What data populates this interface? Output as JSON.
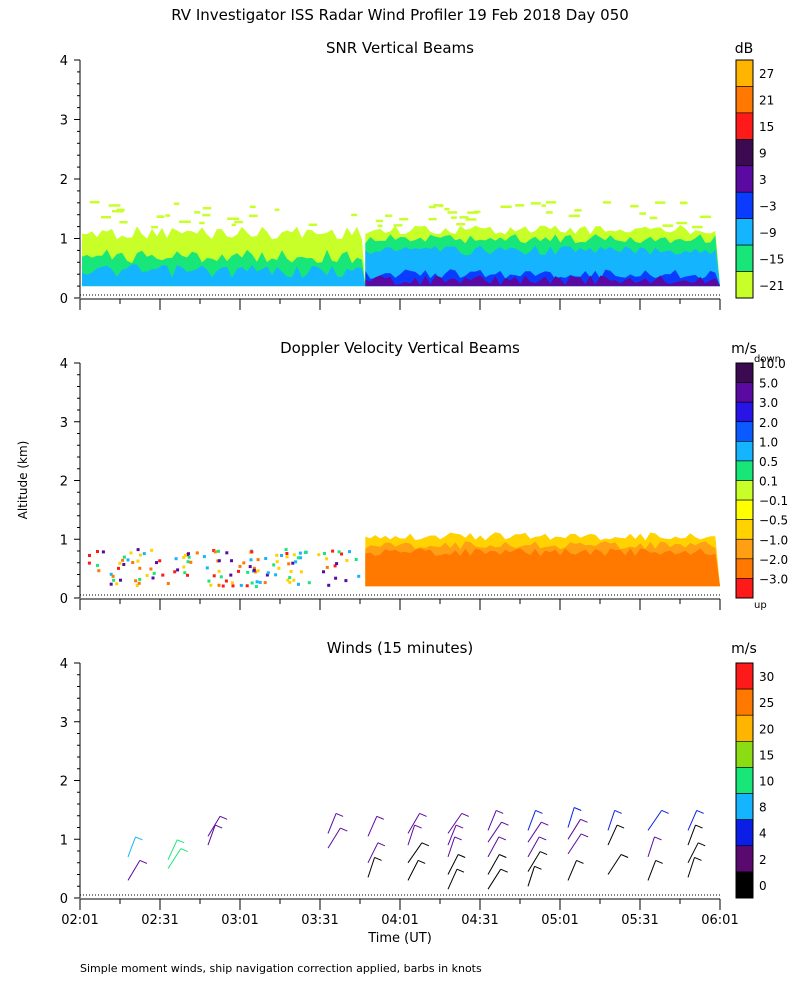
{
  "chart_data": {
    "type": "heatmap",
    "title": "RV Investigator ISS Radar Wind Profiler  19 Feb 2018 Day 050",
    "xlabel": "Time (UT)",
    "ylabel": "Altitude (km)",
    "footnote": "Simple moment winds, ship navigation correction applied, barbs in knots",
    "x_ticks": [
      "02:01",
      "02:31",
      "03:01",
      "03:31",
      "04:01",
      "04:31",
      "05:01",
      "05:31",
      "06:01"
    ],
    "y_ticks": [
      "0",
      "1",
      "2",
      "3",
      "4"
    ],
    "xlim_hours": [
      2.0167,
      6.0167
    ],
    "ylim_km": [
      0,
      4
    ],
    "panels": [
      {
        "id": "snr",
        "title": "SNR Vertical Beams",
        "unit": "dB",
        "colorbar": {
          "labels": [
            "27",
            "21",
            "15",
            "9",
            "3",
            "−3",
            "−9",
            "−15",
            "−21"
          ],
          "colors": [
            "#ffb400",
            "#ff7800",
            "#ff1a1a",
            "#3c0a50",
            "#5a0aa0",
            "#0a3cff",
            "#14b4ff",
            "#19e678",
            "#c8ff28"
          ]
        },
        "regime_change_time": "03:48",
        "layers_before": [
          {
            "top_km": 1.1,
            "color": "#c8ff28"
          },
          {
            "top_km": 0.7,
            "color": "#19e678"
          },
          {
            "top_km": 0.45,
            "color": "#14b4ff"
          }
        ],
        "layers_after": [
          {
            "top_km": 1.15,
            "color": "#c8ff28"
          },
          {
            "top_km": 1.0,
            "color": "#19e678"
          },
          {
            "top_km": 0.8,
            "color": "#14b4ff"
          },
          {
            "top_km": 0.4,
            "color": "#0a3cff"
          },
          {
            "top_km": 0.3,
            "color": "#5a0aa0"
          }
        ]
      },
      {
        "id": "doppler",
        "title": "Doppler Velocity Vertical Beams",
        "unit": "m/s",
        "colorbar": {
          "top_label": "down",
          "bottom_label": "up",
          "labels": [
            "10.0",
            "5.0",
            "3.0",
            "2.0",
            "1.0",
            "0.5",
            "0.1",
            "−0.1",
            "−0.5",
            "−1.0",
            "−2.0",
            "−3.0"
          ],
          "colors": [
            "#3c0a50",
            "#5a0aa0",
            "#2814e6",
            "#0a5aff",
            "#14b4ff",
            "#19e678",
            "#c8ff28",
            "#ffff00",
            "#ffd200",
            "#ffa014",
            "#ff7800",
            "#ff1a1a"
          ]
        },
        "regime_change_time": "03:48",
        "layers_after": [
          {
            "top_km": 1.05,
            "color": "#ffd200"
          },
          {
            "top_km": 0.9,
            "color": "#ffa014"
          },
          {
            "top_km": 0.78,
            "color": "#ff7800"
          }
        ]
      },
      {
        "id": "winds",
        "title": "Winds (15 minutes)",
        "unit": "m/s",
        "colorbar": {
          "labels": [
            "30",
            "25",
            "20",
            "15",
            "10",
            "8",
            "4",
            "2",
            "0"
          ],
          "colors": [
            "#ff1a1a",
            "#ff7800",
            "#ffb400",
            "#8cdc14",
            "#19e678",
            "#14b4ff",
            "#0a1ee6",
            "#5a0a6e",
            "#000000"
          ]
        },
        "barb_groups": [
          {
            "time": "02:19",
            "barbs": [
              {
                "alt_km": 0.7,
                "color": "#14b4ff"
              },
              {
                "alt_km": 0.3,
                "color": "#5a0aa0"
              }
            ]
          },
          {
            "time": "02:34",
            "barbs": [
              {
                "alt_km": 0.65,
                "color": "#19e678"
              },
              {
                "alt_km": 0.5,
                "color": "#19e678"
              }
            ]
          },
          {
            "time": "02:49",
            "barbs": [
              {
                "alt_km": 1.05,
                "color": "#5a0aa0"
              },
              {
                "alt_km": 0.9,
                "color": "#5a0aa0"
              }
            ]
          },
          {
            "time": "03:34",
            "barbs": [
              {
                "alt_km": 1.1,
                "color": "#5a0aa0"
              },
              {
                "alt_km": 0.85,
                "color": "#5a0aa0"
              }
            ]
          },
          {
            "time": "03:49",
            "barbs": [
              {
                "alt_km": 1.05,
                "color": "#5a0aa0"
              },
              {
                "alt_km": 0.6,
                "color": "#5a0aa0"
              },
              {
                "alt_km": 0.35,
                "color": "#000000"
              }
            ]
          },
          {
            "time": "04:04",
            "barbs": [
              {
                "alt_km": 1.1,
                "color": "#5a0aa0"
              },
              {
                "alt_km": 0.9,
                "color": "#5a0aa0"
              },
              {
                "alt_km": 0.6,
                "color": "#000000"
              },
              {
                "alt_km": 0.3,
                "color": "#000000"
              }
            ]
          },
          {
            "time": "04:19",
            "barbs": [
              {
                "alt_km": 1.1,
                "color": "#5a0aa0"
              },
              {
                "alt_km": 0.9,
                "color": "#5a0aa0"
              },
              {
                "alt_km": 0.7,
                "color": "#5a0aa0"
              },
              {
                "alt_km": 0.4,
                "color": "#000000"
              },
              {
                "alt_km": 0.15,
                "color": "#000000"
              }
            ]
          },
          {
            "time": "04:34",
            "barbs": [
              {
                "alt_km": 1.15,
                "color": "#5a0aa0"
              },
              {
                "alt_km": 0.95,
                "color": "#5a0aa0"
              },
              {
                "alt_km": 0.7,
                "color": "#5a0aa0"
              },
              {
                "alt_km": 0.4,
                "color": "#000000"
              },
              {
                "alt_km": 0.15,
                "color": "#000000"
              }
            ]
          },
          {
            "time": "04:49",
            "barbs": [
              {
                "alt_km": 1.15,
                "color": "#0a1ee6"
              },
              {
                "alt_km": 0.95,
                "color": "#5a0aa0"
              },
              {
                "alt_km": 0.7,
                "color": "#5a0aa0"
              },
              {
                "alt_km": 0.45,
                "color": "#000000"
              },
              {
                "alt_km": 0.2,
                "color": "#000000"
              }
            ]
          },
          {
            "time": "05:04",
            "barbs": [
              {
                "alt_km": 1.2,
                "color": "#0a1ee6"
              },
              {
                "alt_km": 1.0,
                "color": "#5a0aa0"
              },
              {
                "alt_km": 0.75,
                "color": "#5a0aa0"
              },
              {
                "alt_km": 0.3,
                "color": "#000000"
              }
            ]
          },
          {
            "time": "05:19",
            "barbs": [
              {
                "alt_km": 1.15,
                "color": "#0a1ee6"
              },
              {
                "alt_km": 0.9,
                "color": "#000000"
              },
              {
                "alt_km": 0.4,
                "color": "#000000"
              }
            ]
          },
          {
            "time": "05:34",
            "barbs": [
              {
                "alt_km": 1.15,
                "color": "#0a1ee6"
              },
              {
                "alt_km": 0.7,
                "color": "#5a0aa0"
              },
              {
                "alt_km": 0.3,
                "color": "#000000"
              }
            ]
          },
          {
            "time": "05:49",
            "barbs": [
              {
                "alt_km": 1.15,
                "color": "#0a1ee6"
              },
              {
                "alt_km": 0.9,
                "color": "#000000"
              },
              {
                "alt_km": 0.6,
                "color": "#000000"
              },
              {
                "alt_km": 0.35,
                "color": "#000000"
              }
            ]
          }
        ]
      }
    ]
  }
}
